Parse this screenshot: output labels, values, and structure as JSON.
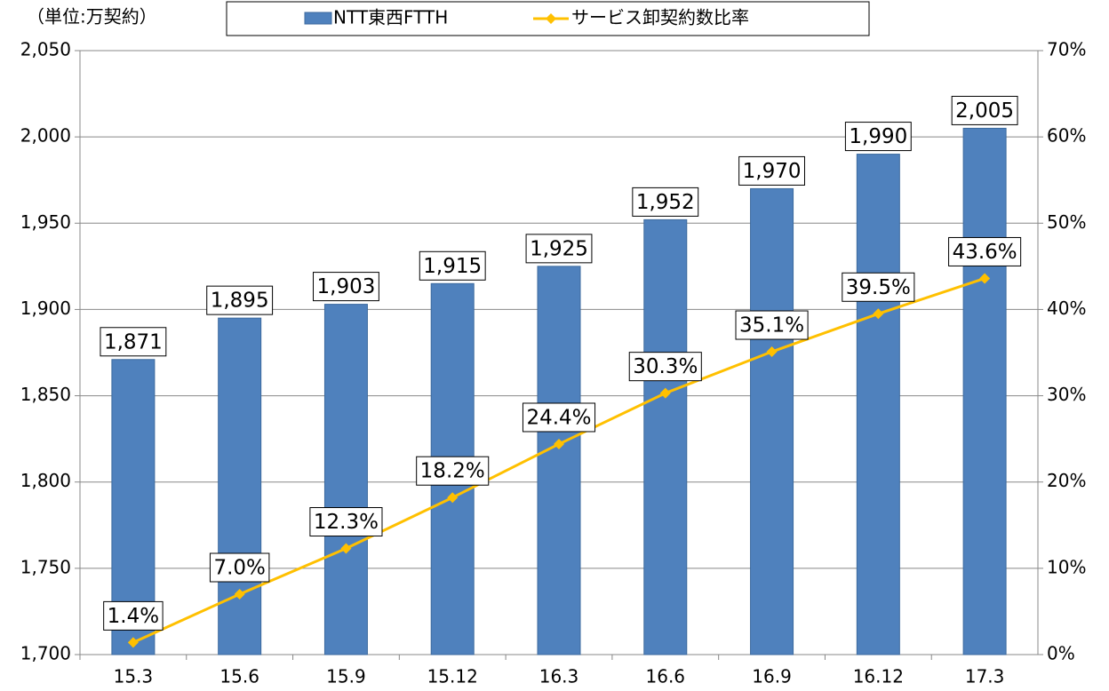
{
  "chart_data": {
    "type": "bar_line",
    "unit_label": "（単位:万契約）",
    "categories": [
      "15.3",
      "15.6",
      "15.9",
      "15.12",
      "16.3",
      "16.6",
      "16.9",
      "16.12",
      "17.3"
    ],
    "series": [
      {
        "name": "NTT東西FTTH",
        "color": "#4f81bd",
        "type": "bar",
        "values": [
          1871,
          1895,
          1903,
          1915,
          1925,
          1952,
          1970,
          1990,
          2005
        ],
        "value_labels": [
          "1,871",
          "1,895",
          "1,903",
          "1,915",
          "1,925",
          "1,952",
          "1,970",
          "1,990",
          "2,005"
        ]
      },
      {
        "name": "サービス卸契約数比率",
        "color": "#ffc000",
        "type": "line",
        "axis": "y2",
        "values": [
          1.4,
          7.0,
          12.3,
          18.2,
          24.4,
          30.3,
          35.1,
          39.5,
          43.6
        ],
        "value_labels": [
          "1.4%",
          "7.0%",
          "12.3%",
          "18.2%",
          "24.4%",
          "30.3%",
          "35.1%",
          "39.5%",
          "43.6%"
        ]
      }
    ],
    "ylim": [
      1700,
      2050
    ],
    "yticks": [
      {
        "value": 1700,
        "label": "1,700"
      },
      {
        "value": 1750,
        "label": "1,750"
      },
      {
        "value": 1800,
        "label": "1,800"
      },
      {
        "value": 1850,
        "label": "1,850"
      },
      {
        "value": 1900,
        "label": "1,900"
      },
      {
        "value": 1950,
        "label": "1,950"
      },
      {
        "value": 2000,
        "label": "2,000"
      },
      {
        "value": 2050,
        "label": "2,050"
      }
    ],
    "y2lim": [
      0,
      70
    ],
    "y2ticks": [
      {
        "value": 0,
        "label": "0%"
      },
      {
        "value": 10,
        "label": "10%"
      },
      {
        "value": 20,
        "label": "20%"
      },
      {
        "value": 30,
        "label": "30%"
      },
      {
        "value": 40,
        "label": "40%"
      },
      {
        "value": 50,
        "label": "50%"
      },
      {
        "value": 60,
        "label": "60%"
      },
      {
        "value": 70,
        "label": "70%"
      }
    ],
    "grid": true,
    "legend": "top"
  }
}
